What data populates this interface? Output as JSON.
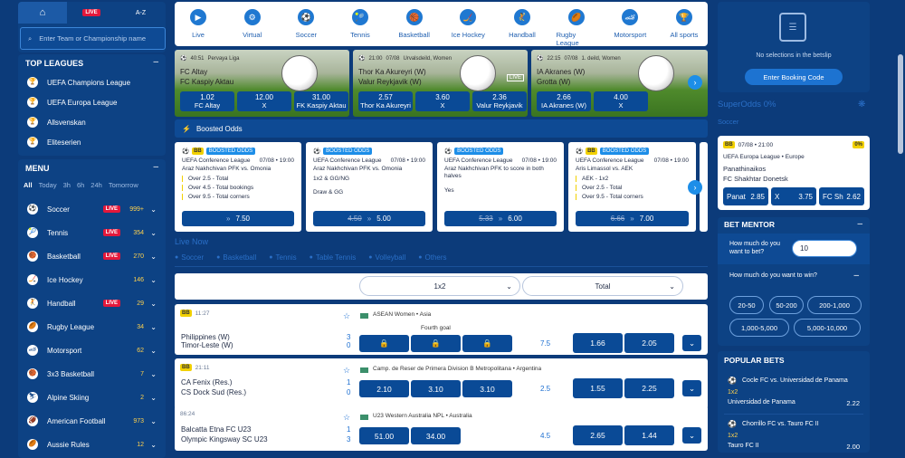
{
  "sidebar": {
    "top_tabs": {
      "home": "⌂",
      "live": "LIVE",
      "az": "A-Z"
    },
    "search_placeholder": "Enter Team or Championship name",
    "top_leagues_title": "TOP LEAGUES",
    "top_leagues": [
      "UEFA Champions League",
      "UEFA Europa League",
      "Allsvenskan",
      "Eliteserien"
    ],
    "menu_title": "MENU",
    "filters": [
      "All",
      "Today",
      "3h",
      "6h",
      "24h",
      "Tomorrow"
    ],
    "sports": [
      {
        "name": "Soccer",
        "live": "LIVE",
        "count": "999+",
        "icon": "⚽"
      },
      {
        "name": "Tennis",
        "live": "LIVE",
        "count": "354",
        "icon": "🎾"
      },
      {
        "name": "Basketball",
        "live": "LIVE",
        "count": "270",
        "icon": "🏀"
      },
      {
        "name": "Ice Hockey",
        "live": "",
        "count": "146",
        "icon": "🏒"
      },
      {
        "name": "Handball",
        "live": "LIVE",
        "count": "29",
        "icon": "🤾"
      },
      {
        "name": "Rugby League",
        "live": "",
        "count": "34",
        "icon": "🏉"
      },
      {
        "name": "Motorsport",
        "live": "",
        "count": "62",
        "icon": "🏎"
      },
      {
        "name": "3x3 Basketball",
        "live": "",
        "count": "7",
        "icon": "🏀"
      },
      {
        "name": "Alpine Skiing",
        "live": "",
        "count": "2",
        "icon": "⛷"
      },
      {
        "name": "American Football",
        "live": "",
        "count": "973",
        "icon": "🏈"
      },
      {
        "name": "Aussie Rules",
        "live": "",
        "count": "12",
        "icon": "🏉"
      }
    ]
  },
  "sportnav": [
    {
      "label": "Live",
      "icon": "▶"
    },
    {
      "label": "Virtual",
      "icon": "⚙"
    },
    {
      "label": "Soccer",
      "icon": "⚽"
    },
    {
      "label": "Tennis",
      "icon": "🎾"
    },
    {
      "label": "Basketball",
      "icon": "🏀"
    },
    {
      "label": "Ice Hockey",
      "icon": "🏒"
    },
    {
      "label": "Handball",
      "icon": "🤾"
    },
    {
      "label": "Rugby League",
      "icon": "🏉"
    },
    {
      "label": "Motorsport",
      "icon": "🏎"
    },
    {
      "label": "All sports",
      "icon": "🏆"
    }
  ],
  "banners": [
    {
      "time": "40:51",
      "league": "Pervaya Liga",
      "home": "FC Altay",
      "away": "FC Kaspiy Aktau",
      "odds": [
        {
          "v": "1.02",
          "l": "FC Altay"
        },
        {
          "v": "12.00",
          "l": "X"
        },
        {
          "v": "31.00",
          "l": "FK Kaspiy Aktau"
        }
      ]
    },
    {
      "time": "21:00",
      "date": "07/08",
      "league": "Urvalsdeild, Women",
      "home": "Thor Ka Akureyri (W)",
      "away": "Valur Reykjavik (W)",
      "live": "LIVE",
      "odds": [
        {
          "v": "2.57",
          "l": "Thor Ka Akureyri"
        },
        {
          "v": "3.60",
          "l": "X"
        },
        {
          "v": "2.36",
          "l": "Valur Reykjavik"
        }
      ]
    },
    {
      "time": "22:15",
      "date": "07/08",
      "league": "1. deild, Women",
      "home": "IA Akranes (W)",
      "away": "Grotta (W)",
      "odds": [
        {
          "v": "2.66",
          "l": "IA Akranes (W)"
        },
        {
          "v": "4.00",
          "l": "X"
        },
        {
          "v": "",
          "l": ""
        }
      ]
    }
  ],
  "boosted": {
    "title": "Boosted Odds",
    "tag": "BOOSTED ODDS",
    "bb": "BB",
    "cards": [
      {
        "league": "UEFA Conference League",
        "date": "07/08 • 19:00",
        "match": "Araz Nakhchivan PFK vs. Omonia",
        "lines": [
          "Over 2.5 - Total",
          "Over 4.5 - Total bookings",
          "Over 9.5 - Total corners"
        ],
        "old": "",
        "new": "7.50",
        "hasBB": true
      },
      {
        "league": "UEFA Conference League",
        "date": "07/08 • 19:00",
        "match": "Araz Nakhchivan PFK vs. Omonia",
        "lines": [
          "1x2 & GG/NG",
          "",
          "Draw & GG"
        ],
        "old": "4.50",
        "new": "5.00",
        "hasBB": false
      },
      {
        "league": "UEFA Conference League",
        "date": "07/08 • 19:00",
        "match": "Araz Nakhchivan PFK to score in both halves",
        "lines": [
          "",
          "Yes"
        ],
        "old": "5.33",
        "new": "6.00",
        "hasBB": false
      },
      {
        "league": "UEFA Conference League",
        "date": "07/08 • 19:00",
        "match": "Aris Limassol vs. AEK",
        "lines": [
          "AEK - 1x2",
          "Over 2.5 - Total",
          "Over 9.5 - Total corners"
        ],
        "old": "6.66",
        "new": "7.00",
        "hasBB": true
      }
    ]
  },
  "live_now": {
    "title": "Live Now",
    "tabs": [
      "Soccer",
      "Basketball",
      "Tennis",
      "Table Tennis",
      "Volleyball",
      "Others"
    ],
    "market1": "1x2",
    "market2": "Total"
  },
  "matches": [
    {
      "bb": "BB",
      "time": "11:27",
      "league": "ASEAN Women • Asia",
      "note": "Fourth goal",
      "home": "Philippines (W)",
      "away": "Timor-Leste (W)",
      "hs": "3",
      "as": "0",
      "line": "7.5",
      "o1": "",
      "o2": "",
      "o3": "",
      "t1": "1.66",
      "t2": "2.05",
      "locked": true
    },
    {
      "bb": "BB",
      "time": "21:11",
      "league": "Camp. de Reser de Primera Division B Metropolitana • Argentina",
      "note": "",
      "home": "CA Fenix (Res.)",
      "away": "CS Dock Sud (Res.)",
      "hs": "1",
      "as": "0",
      "line": "2.5",
      "o1": "2.10",
      "o2": "3.10",
      "o3": "3.10",
      "t1": "1.55",
      "t2": "2.25",
      "locked": false
    },
    {
      "bb": "",
      "time": "86:24",
      "league": "U23 Western Australia NPL • Australia",
      "note": "",
      "home": "Balcatta Etna FC U23",
      "away": "Olympic Kingsway SC U23",
      "hs": "1",
      "as": "3",
      "line": "4.5",
      "o1": "51.00",
      "o2": "34.00",
      "o3": "",
      "t1": "2.65",
      "t2": "1.44",
      "locked": false
    }
  ],
  "betslip": {
    "empty": "No selections in the betslip",
    "booking_button": "Enter Booking Code"
  },
  "superodds": {
    "title": "SuperOdds 0%",
    "tab": "Soccer",
    "bb": "BB",
    "date": "07/08 • 21:00",
    "pct": "0%",
    "league": "UEFA Europa League • Europe",
    "home": "Panathinaikos",
    "away": "FC Shakhtar Donetsk",
    "odds": [
      {
        "l": "Panat",
        "v": "2.85"
      },
      {
        "l": "X",
        "v": "3.75"
      },
      {
        "l": "FC Sh",
        "v": "2.62"
      }
    ]
  },
  "bet_mentor": {
    "title": "BET MENTOR",
    "q1": "How much do you want to bet?",
    "amount": "10",
    "q2": "How much do you want to win?",
    "ranges": [
      "20-50",
      "50-200",
      "200-1,000",
      "1,000-5,000",
      "5,000-10,000"
    ]
  },
  "popular": {
    "title": "POPULAR BETS",
    "items": [
      {
        "match": "Cocle FC vs. Universidad de Panama",
        "market": "1x2",
        "pick": "Universidad de Panama",
        "odd": "2.22"
      },
      {
        "match": "Chorrillo FC vs. Tauro FC II",
        "market": "1x2",
        "pick": "Tauro FC II",
        "odd": "2.00"
      }
    ]
  },
  "colors": {
    "bg": "#0c3b7a",
    "panel": "#0d4284",
    "button": "#0a4a96",
    "live": "#e3183b",
    "accent": "#1d8ee8"
  }
}
